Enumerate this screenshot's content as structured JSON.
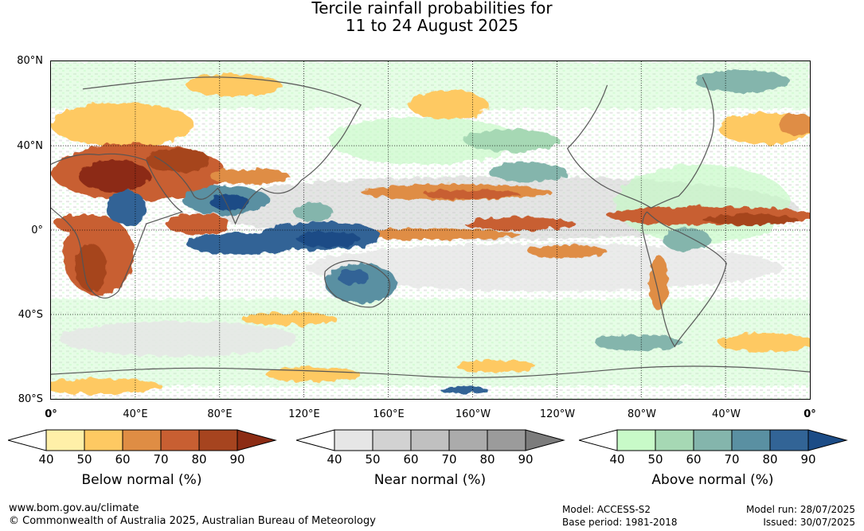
{
  "header": {
    "title_line1": "Tercile rainfall probabilities for",
    "title_line2": "11 to 24 August 2025"
  },
  "axes": {
    "lat_labels": [
      "80°N",
      "40°N",
      "0°",
      "40°S",
      "80°S"
    ],
    "lon_labels": [
      "0°",
      "40°E",
      "80°E",
      "120°E",
      "160°E",
      "160°W",
      "120°W",
      "80°W",
      "40°W",
      "0°"
    ],
    "lat_range": [
      -80,
      80
    ],
    "lon_range_east_deg": [
      0,
      360
    ],
    "graticule": "dotted every 40°"
  },
  "legends": [
    {
      "id": "below",
      "title": "Below normal (%)",
      "ticks": [
        "40",
        "50",
        "60",
        "70",
        "80",
        "90"
      ],
      "colors": [
        "#ffffff",
        "#fff0a8",
        "#fec962",
        "#df8d44",
        "#c85f32",
        "#a6441f",
        "#8c2c14"
      ]
    },
    {
      "id": "near",
      "title": "Near normal (%)",
      "ticks": [
        "40",
        "50",
        "60",
        "70",
        "80",
        "90"
      ],
      "colors": [
        "#ffffff",
        "#e6e6e6",
        "#d2d2d2",
        "#c0c0c0",
        "#ababab",
        "#9b9b9b",
        "#7c7c7c"
      ]
    },
    {
      "id": "above",
      "title": "Above normal (%)",
      "ticks": [
        "40",
        "50",
        "60",
        "70",
        "80",
        "90"
      ],
      "colors": [
        "#ffffff",
        "#c8fac8",
        "#a6d8b4",
        "#84b5ac",
        "#5a90a2",
        "#326496",
        "#1c4c86"
      ]
    }
  ],
  "footer": {
    "website": "www.bom.gov.au/climate",
    "copyright": "© Commonwealth of Australia 2025, Australian Bureau of Meteorology",
    "model": "Model: ACCESS-S2",
    "base_period": "Base period: 1981-2018",
    "model_run": "Model run: 28/07/2025",
    "issued": "Issued: 30/07/2025"
  }
}
